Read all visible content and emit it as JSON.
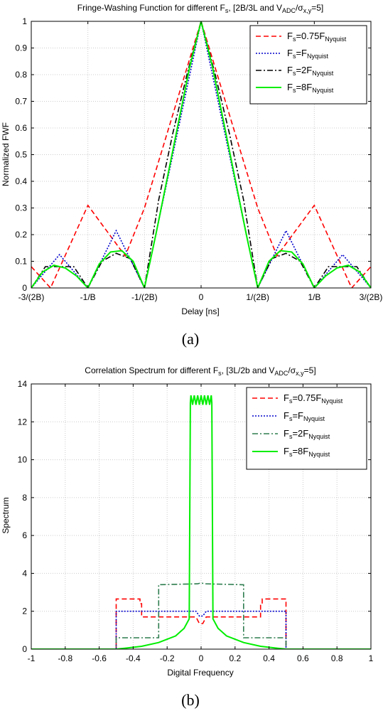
{
  "chart_data": [
    {
      "type": "line",
      "title": "Fringe-Washing Function for different F_s, [2B/3L and V_ADC/σ_x,y=5]",
      "title_parts": [
        "Fringe-Washing Function for different F",
        "s",
        ", [2B/3L and V",
        "ADC",
        "/σ",
        "x,y",
        "=5]"
      ],
      "xlabel": "Delay [ns]",
      "ylabel": "Normalized FWF",
      "caption": "(a)",
      "xlim": [
        -1.5,
        1.5
      ],
      "ylim": [
        0,
        1
      ],
      "xticks": [
        -1.5,
        -1,
        -0.5,
        0,
        0.5,
        1,
        1.5
      ],
      "xtick_labels": [
        "-3/(2B)",
        "-1/B",
        "-1/(2B)",
        "0",
        "1/(2B)",
        "1/B",
        "3/(2B)"
      ],
      "yticks": [
        0,
        0.1,
        0.2,
        0.3,
        0.4,
        0.5,
        0.6,
        0.7,
        0.8,
        0.9,
        1
      ],
      "ytick_labels": [
        "0",
        "0.1",
        "0.2",
        "0.3",
        "0.4",
        "0.5",
        "0.6",
        "0.7",
        "0.8",
        "0.9",
        "1"
      ],
      "grid": true,
      "legend_position": "top-right",
      "series": [
        {
          "name": "F_s=0.75F_Nyquist",
          "label_parts": [
            "F",
            "s",
            "=0.75F",
            "Nyquist"
          ],
          "color": "#ff0000",
          "style": "dashed",
          "x": [
            -1.5,
            -1.33,
            -1.0,
            -0.67,
            -0.5,
            -0.4,
            -0.2,
            0,
            0.2,
            0.4,
            0.5,
            0.67,
            1.0,
            1.33,
            1.5
          ],
          "y": [
            0.08,
            0,
            0.31,
            0.12,
            0.3,
            0.44,
            0.72,
            1,
            0.72,
            0.44,
            0.3,
            0.12,
            0.31,
            0,
            0.08
          ]
        },
        {
          "name": "F_s=F_Nyquist",
          "label_parts": [
            "F",
            "s",
            "=F",
            "Nyquist"
          ],
          "color": "#0000cc",
          "style": "dotted",
          "x": [
            -1.5,
            -1.25,
            -1.0,
            -0.75,
            -0.5,
            -0.25,
            0,
            0.25,
            0.5,
            0.75,
            1.0,
            1.25,
            1.5
          ],
          "y": [
            0,
            0.125,
            0,
            0.215,
            0,
            0.5,
            1,
            0.5,
            0,
            0.215,
            0,
            0.125,
            0
          ],
          "style_note": "linear"
        },
        {
          "name": "F_s=2F_Nyquist",
          "label_parts": [
            "F",
            "s",
            "=2F",
            "Nyquist"
          ],
          "color": "#000000",
          "style": "dashdot",
          "x": [
            -1.5,
            -1.375,
            -1.25,
            -1.125,
            -1.0,
            -0.875,
            -0.75,
            -0.625,
            -0.5,
            -0.375,
            -0.25,
            -0.125,
            0,
            0.125,
            0.25,
            0.375,
            0.5,
            0.625,
            0.75,
            0.875,
            1.0,
            1.125,
            1.25,
            1.375,
            1.5
          ],
          "y": [
            0,
            0.08,
            0.08,
            0.08,
            0,
            0.1,
            0.13,
            0.11,
            0,
            0.33,
            0.58,
            0.8,
            1,
            0.8,
            0.58,
            0.33,
            0,
            0.11,
            0.13,
            0.1,
            0,
            0.08,
            0.08,
            0.08,
            0
          ]
        },
        {
          "name": "F_s=8F_Nyquist",
          "label_parts": [
            "F",
            "s",
            "=8F",
            "Nyquist"
          ],
          "color": "#00ee00",
          "style": "solid",
          "x": [
            -1.5,
            -1.4,
            -1.3,
            -1.2,
            -1.1,
            -1.0,
            -0.9,
            -0.8,
            -0.7,
            -0.6,
            -0.5,
            -0.4,
            -0.3,
            -0.2,
            -0.1,
            0,
            0.1,
            0.2,
            0.3,
            0.4,
            0.5,
            0.6,
            0.7,
            0.8,
            0.9,
            1.0,
            1.1,
            1.2,
            1.3,
            1.4,
            1.5
          ],
          "y": [
            0,
            0.06,
            0.085,
            0.075,
            0.045,
            0,
            0.09,
            0.135,
            0.14,
            0.1,
            0,
            0.2,
            0.41,
            0.62,
            0.83,
            1,
            0.83,
            0.62,
            0.41,
            0.2,
            0,
            0.1,
            0.14,
            0.135,
            0.09,
            0,
            0.045,
            0.075,
            0.085,
            0.06,
            0
          ]
        }
      ]
    },
    {
      "type": "line",
      "title": "Correlation Spectrum for different F_s, [3L/2b and V_ADC/σ_x,y=5]",
      "title_parts": [
        "Correlation Spectrum for different F",
        "s",
        ", [3L/2b and V",
        "ADC",
        "/σ",
        "x,y",
        "=5]"
      ],
      "xlabel": "Digital Frequency",
      "ylabel": "Spectrum",
      "caption": "(b)",
      "xlim": [
        -1,
        1
      ],
      "ylim": [
        0,
        14
      ],
      "xticks": [
        -1,
        -0.8,
        -0.6,
        -0.4,
        -0.2,
        0,
        0.2,
        0.4,
        0.6,
        0.8,
        1
      ],
      "xtick_labels": [
        "-1",
        "-0.8",
        "-0.6",
        "-0.4",
        "-0.2",
        "0",
        "0.2",
        "0.4",
        "0.6",
        "0.8",
        "1"
      ],
      "yticks": [
        0,
        2,
        4,
        6,
        8,
        10,
        12,
        14
      ],
      "ytick_labels": [
        "0",
        "2",
        "4",
        "6",
        "8",
        "10",
        "12",
        "14"
      ],
      "grid": true,
      "legend_position": "top-right",
      "series": [
        {
          "name": "F_s=0.75F_Nyquist",
          "label_parts": [
            "F",
            "s",
            "=0.75F",
            "Nyquist"
          ],
          "color": "#ff0000",
          "style": "dashed",
          "x": [
            -1,
            -0.5,
            -0.5,
            -0.36,
            -0.36,
            -0.35,
            -0.35,
            -0.03,
            -0.01,
            0.01,
            0.03,
            0.35,
            0.35,
            0.36,
            0.36,
            0.5,
            0.5,
            1
          ],
          "y": [
            0,
            0,
            2.65,
            2.65,
            2.4,
            2.4,
            1.7,
            1.7,
            1.35,
            1.35,
            1.7,
            1.7,
            2.4,
            2.4,
            2.65,
            2.65,
            0,
            0
          ]
        },
        {
          "name": "F_s=F_Nyquist",
          "label_parts": [
            "F",
            "s",
            "=F",
            "Nyquist"
          ],
          "color": "#0000cc",
          "style": "dotted",
          "x": [
            -1,
            -0.5,
            -0.5,
            -0.03,
            -0.01,
            0.01,
            0.03,
            0.5,
            0.5,
            1
          ],
          "y": [
            0,
            0,
            2.0,
            2.0,
            1.75,
            1.75,
            2.0,
            2.0,
            0,
            0
          ]
        },
        {
          "name": "F_s=2F_Nyquist",
          "label_parts": [
            "F",
            "s",
            "=2F",
            "Nyquist"
          ],
          "color": "#2e7d4f",
          "style": "dashdot",
          "x": [
            -1,
            -0.5,
            -0.5,
            -0.25,
            -0.25,
            -0.02,
            0,
            0.02,
            0.25,
            0.25,
            0.5,
            0.5,
            1
          ],
          "y": [
            0,
            0,
            0.6,
            0.6,
            3.4,
            3.45,
            3.5,
            3.45,
            3.4,
            0.6,
            0.6,
            0,
            0
          ]
        },
        {
          "name": "F_s=8F_Nyquist",
          "label_parts": [
            "F",
            "s",
            "=8F",
            "Nyquist"
          ],
          "color": "#00ee00",
          "style": "solid",
          "x": [
            -1,
            -0.5,
            -0.45,
            -0.35,
            -0.25,
            -0.15,
            -0.1,
            -0.07,
            -0.063,
            -0.06,
            -0.05,
            -0.04,
            -0.03,
            -0.02,
            -0.01,
            0,
            0.01,
            0.02,
            0.03,
            0.04,
            0.05,
            0.06,
            0.063,
            0.07,
            0.1,
            0.15,
            0.25,
            0.35,
            0.45,
            0.5,
            1
          ],
          "y": [
            0,
            0,
            0.05,
            0.15,
            0.35,
            0.7,
            1.1,
            1.6,
            13.0,
            13.4,
            12.9,
            13.4,
            12.9,
            13.4,
            12.9,
            13.4,
            12.9,
            13.4,
            12.9,
            13.4,
            12.9,
            13.4,
            13.0,
            1.6,
            1.1,
            0.7,
            0.35,
            0.15,
            0.05,
            0,
            0
          ]
        }
      ]
    }
  ]
}
